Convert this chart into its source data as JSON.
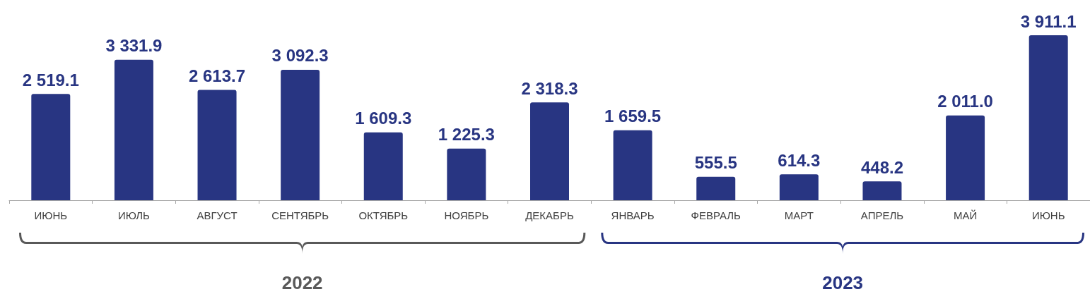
{
  "chart_data": {
    "type": "bar",
    "categories": [
      "ИЮНЬ",
      "ИЮЛЬ",
      "АВГУСТ",
      "СЕНТЯБРЬ",
      "ОКТЯБРЬ",
      "НОЯБРЬ",
      "ДЕКАБРЬ",
      "ЯНВАРЬ",
      "ФЕВРАЛЬ",
      "МАРТ",
      "АПРЕЛЬ",
      "МАЙ",
      "ИЮНЬ"
    ],
    "values": [
      2519.1,
      3331.9,
      2613.7,
      3092.3,
      1609.3,
      1225.3,
      2318.3,
      1659.5,
      555.5,
      614.3,
      448.2,
      2011.0,
      3911.1
    ],
    "value_labels": [
      "2 519.1",
      "3 331.9",
      "2 613.7",
      "3 092.3",
      "1 609.3",
      "1 225.3",
      "2 318.3",
      "1 659.5",
      "555.5",
      "614.3",
      "448.2",
      "2 011.0",
      "3 911.1"
    ],
    "color": "#283582",
    "annotations": [
      "2022",
      "2023"
    ]
  }
}
